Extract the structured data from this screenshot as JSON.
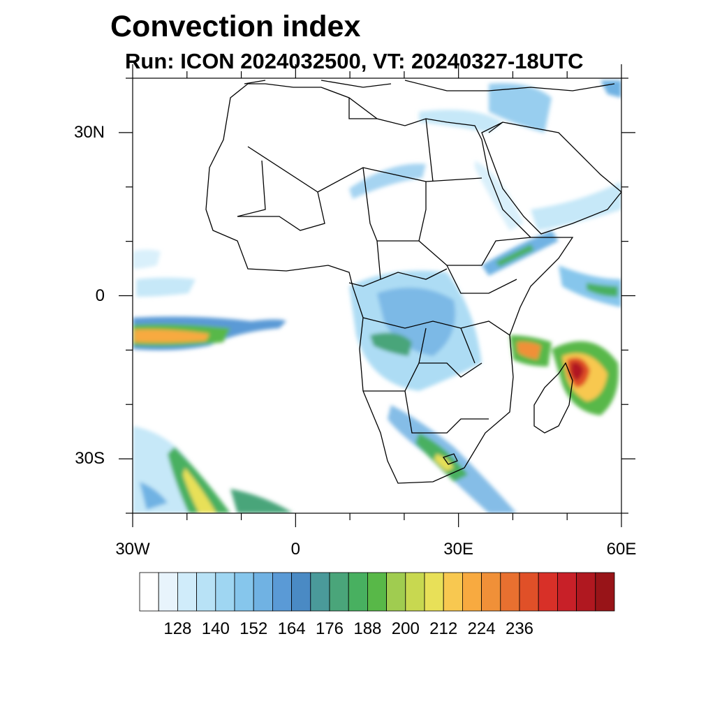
{
  "header": {
    "title": "Convection index",
    "subtitle": "Run: ICON 2024032500,  VT: 20240327-18UTC"
  },
  "map": {
    "region": "Africa",
    "lon_range": [
      -30,
      60
    ],
    "lat_range": [
      -40,
      40
    ],
    "lat_ticks": [
      {
        "value": 30,
        "label": "30N"
      },
      {
        "value": 0,
        "label": "0"
      },
      {
        "value": -30,
        "label": "30S"
      }
    ],
    "lon_ticks": [
      {
        "value": -30,
        "label": "30W"
      },
      {
        "value": 0,
        "label": "0"
      },
      {
        "value": 30,
        "label": "30E"
      },
      {
        "value": 60,
        "label": "60E"
      }
    ]
  },
  "colorbar": {
    "colors": [
      "#ffffff",
      "#e8f4fc",
      "#d0ecfa",
      "#b8e2f6",
      "#9fd6f2",
      "#86c6ec",
      "#70b2e3",
      "#5a9ad6",
      "#4a8ac4",
      "#4a9a9a",
      "#4aa57a",
      "#48b060",
      "#58b848",
      "#a0cc50",
      "#c8d850",
      "#e8e058",
      "#f8c850",
      "#f8aa40",
      "#f09038",
      "#e87030",
      "#e05028",
      "#d83028",
      "#c82028",
      "#b01820",
      "#981418"
    ],
    "labels": [
      "128",
      "140",
      "152",
      "164",
      "176",
      "188",
      "200",
      "212",
      "224",
      "236"
    ]
  }
}
